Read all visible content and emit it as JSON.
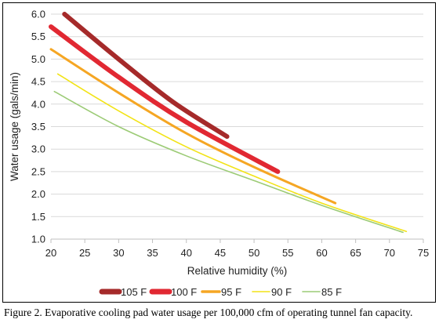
{
  "chart_data": {
    "type": "line",
    "title": "",
    "xlabel": "Relative humidity (%)",
    "ylabel": "Water usage (gals/min)",
    "xlim": [
      20,
      75
    ],
    "ylim": [
      1.0,
      6.0
    ],
    "x_ticks": [
      "20",
      "25",
      "30",
      "35",
      "40",
      "45",
      "50",
      "55",
      "60",
      "65",
      "70",
      "75"
    ],
    "y_ticks": [
      "1.0",
      "1.5",
      "2.0",
      "2.5",
      "3.0",
      "3.5",
      "4.0",
      "4.5",
      "5.0",
      "5.5",
      "6.0"
    ],
    "grid": "horizontal",
    "legend_position": "bottom",
    "series": [
      {
        "name": "105 F",
        "color": "#a52a2a",
        "weight": "heavy",
        "x": [
          22,
          30,
          38,
          46
        ],
        "y": [
          6.0,
          5.0,
          4.05,
          3.28
        ]
      },
      {
        "name": "100 F",
        "color": "#e12832",
        "weight": "heavy",
        "x": [
          20,
          30,
          40,
          53.5
        ],
        "y": [
          5.72,
          4.6,
          3.6,
          2.5
        ]
      },
      {
        "name": "95 F",
        "color": "#f5a623",
        "weight": "medium",
        "x": [
          20,
          30,
          40,
          50,
          62
        ],
        "y": [
          5.22,
          4.25,
          3.35,
          2.6,
          1.8
        ]
      },
      {
        "name": "90 F",
        "color": "#f2e316",
        "weight": "light",
        "x": [
          21,
          30,
          40,
          50,
          60,
          72.5
        ],
        "y": [
          4.67,
          3.85,
          3.05,
          2.4,
          1.8,
          1.17
        ]
      },
      {
        "name": "85 F",
        "color": "#9ccb76",
        "weight": "light",
        "x": [
          20.5,
          30,
          40,
          50,
          60,
          72
        ],
        "y": [
          4.28,
          3.5,
          2.85,
          2.3,
          1.75,
          1.15
        ]
      }
    ]
  },
  "caption": "Figure 2.  Evaporative cooling pad water usage per 100,000 cfm of operating tunnel fan capacity."
}
